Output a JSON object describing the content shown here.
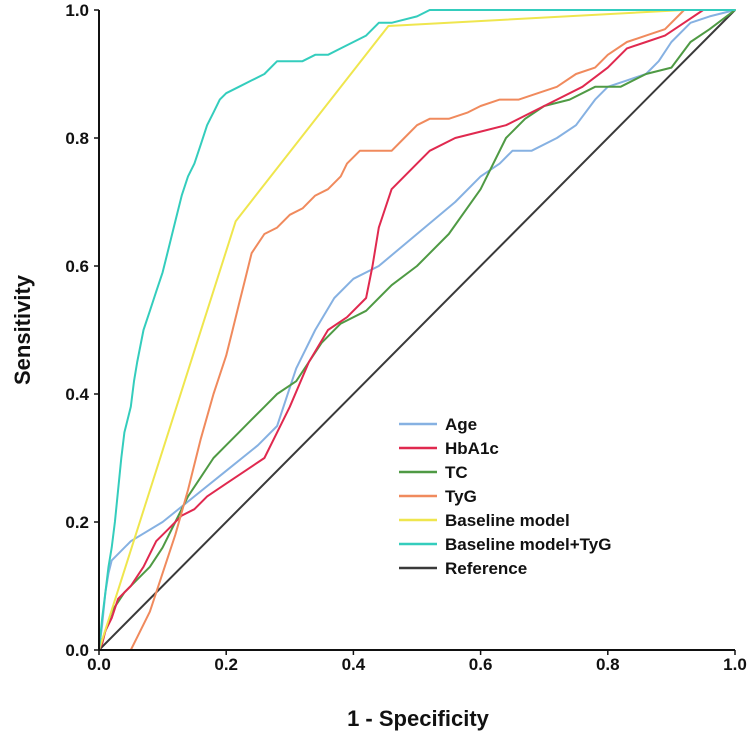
{
  "chart_data": {
    "type": "line",
    "title": "",
    "xlabel": "1 - Specificity",
    "ylabel": "Sensitivity",
    "xlim": [
      0.0,
      1.0
    ],
    "ylim": [
      0.0,
      1.0
    ],
    "x_ticks": [
      0.0,
      0.2,
      0.4,
      0.6,
      0.8,
      1.0
    ],
    "y_ticks": [
      0.0,
      0.2,
      0.4,
      0.6,
      0.8,
      1.0
    ],
    "x_tick_labels": [
      "0.0",
      "0.2",
      "0.4",
      "0.6",
      "0.8",
      "1.0"
    ],
    "y_tick_labels": [
      "0.0",
      "0.2",
      "0.4",
      "0.6",
      "0.8",
      "1.0"
    ],
    "grid": false,
    "legend_position": "bottom-right",
    "series": [
      {
        "name": "Age",
        "color": "#86b1e2",
        "points": [
          [
            0.0,
            0.0
          ],
          [
            0.005,
            0.04
          ],
          [
            0.01,
            0.09
          ],
          [
            0.015,
            0.12
          ],
          [
            0.02,
            0.14
          ],
          [
            0.05,
            0.17
          ],
          [
            0.1,
            0.2
          ],
          [
            0.15,
            0.24
          ],
          [
            0.2,
            0.28
          ],
          [
            0.25,
            0.32
          ],
          [
            0.28,
            0.35
          ],
          [
            0.31,
            0.44
          ],
          [
            0.34,
            0.5
          ],
          [
            0.37,
            0.55
          ],
          [
            0.4,
            0.58
          ],
          [
            0.44,
            0.6
          ],
          [
            0.5,
            0.65
          ],
          [
            0.56,
            0.7
          ],
          [
            0.6,
            0.74
          ],
          [
            0.63,
            0.76
          ],
          [
            0.65,
            0.78
          ],
          [
            0.68,
            0.78
          ],
          [
            0.72,
            0.8
          ],
          [
            0.75,
            0.82
          ],
          [
            0.78,
            0.86
          ],
          [
            0.8,
            0.88
          ],
          [
            0.83,
            0.89
          ],
          [
            0.86,
            0.9
          ],
          [
            0.88,
            0.92
          ],
          [
            0.9,
            0.95
          ],
          [
            0.93,
            0.98
          ],
          [
            0.96,
            0.99
          ],
          [
            1.0,
            1.0
          ]
        ]
      },
      {
        "name": "HbA1c",
        "color": "#e0294f",
        "points": [
          [
            0.0,
            0.0
          ],
          [
            0.005,
            0.01
          ],
          [
            0.01,
            0.03
          ],
          [
            0.02,
            0.05
          ],
          [
            0.03,
            0.08
          ],
          [
            0.05,
            0.1
          ],
          [
            0.07,
            0.13
          ],
          [
            0.09,
            0.17
          ],
          [
            0.11,
            0.19
          ],
          [
            0.13,
            0.21
          ],
          [
            0.15,
            0.22
          ],
          [
            0.17,
            0.24
          ],
          [
            0.2,
            0.26
          ],
          [
            0.23,
            0.28
          ],
          [
            0.26,
            0.3
          ],
          [
            0.28,
            0.34
          ],
          [
            0.3,
            0.38
          ],
          [
            0.33,
            0.45
          ],
          [
            0.36,
            0.5
          ],
          [
            0.39,
            0.52
          ],
          [
            0.42,
            0.55
          ],
          [
            0.43,
            0.6
          ],
          [
            0.44,
            0.66
          ],
          [
            0.46,
            0.72
          ],
          [
            0.5,
            0.76
          ],
          [
            0.52,
            0.78
          ],
          [
            0.56,
            0.8
          ],
          [
            0.6,
            0.81
          ],
          [
            0.64,
            0.82
          ],
          [
            0.68,
            0.84
          ],
          [
            0.72,
            0.86
          ],
          [
            0.76,
            0.88
          ],
          [
            0.8,
            0.91
          ],
          [
            0.83,
            0.94
          ],
          [
            0.86,
            0.95
          ],
          [
            0.89,
            0.96
          ],
          [
            0.92,
            0.98
          ],
          [
            0.95,
            1.0
          ],
          [
            1.0,
            1.0
          ]
        ]
      },
      {
        "name": "TC",
        "color": "#4f9a44",
        "points": [
          [
            0.0,
            0.0
          ],
          [
            0.01,
            0.03
          ],
          [
            0.02,
            0.06
          ],
          [
            0.04,
            0.09
          ],
          [
            0.06,
            0.11
          ],
          [
            0.08,
            0.13
          ],
          [
            0.1,
            0.16
          ],
          [
            0.12,
            0.2
          ],
          [
            0.14,
            0.24
          ],
          [
            0.16,
            0.27
          ],
          [
            0.18,
            0.3
          ],
          [
            0.2,
            0.32
          ],
          [
            0.22,
            0.34
          ],
          [
            0.24,
            0.36
          ],
          [
            0.26,
            0.38
          ],
          [
            0.28,
            0.4
          ],
          [
            0.31,
            0.42
          ],
          [
            0.33,
            0.45
          ],
          [
            0.35,
            0.48
          ],
          [
            0.38,
            0.51
          ],
          [
            0.42,
            0.53
          ],
          [
            0.46,
            0.57
          ],
          [
            0.5,
            0.6
          ],
          [
            0.55,
            0.65
          ],
          [
            0.6,
            0.72
          ],
          [
            0.64,
            0.8
          ],
          [
            0.67,
            0.83
          ],
          [
            0.7,
            0.85
          ],
          [
            0.74,
            0.86
          ],
          [
            0.78,
            0.88
          ],
          [
            0.82,
            0.88
          ],
          [
            0.86,
            0.9
          ],
          [
            0.9,
            0.91
          ],
          [
            0.93,
            0.95
          ],
          [
            0.96,
            0.97
          ],
          [
            1.0,
            1.0
          ]
        ]
      },
      {
        "name": "TyG",
        "color": "#f08a5d",
        "points": [
          [
            0.0,
            0.0
          ],
          [
            0.02,
            0.0
          ],
          [
            0.05,
            0.0
          ],
          [
            0.06,
            0.02
          ],
          [
            0.08,
            0.06
          ],
          [
            0.1,
            0.12
          ],
          [
            0.12,
            0.18
          ],
          [
            0.14,
            0.25
          ],
          [
            0.16,
            0.33
          ],
          [
            0.18,
            0.4
          ],
          [
            0.2,
            0.46
          ],
          [
            0.21,
            0.5
          ],
          [
            0.22,
            0.54
          ],
          [
            0.23,
            0.58
          ],
          [
            0.24,
            0.62
          ],
          [
            0.26,
            0.65
          ],
          [
            0.28,
            0.66
          ],
          [
            0.3,
            0.68
          ],
          [
            0.32,
            0.69
          ],
          [
            0.34,
            0.71
          ],
          [
            0.36,
            0.72
          ],
          [
            0.38,
            0.74
          ],
          [
            0.39,
            0.76
          ],
          [
            0.41,
            0.78
          ],
          [
            0.43,
            0.78
          ],
          [
            0.46,
            0.78
          ],
          [
            0.48,
            0.8
          ],
          [
            0.5,
            0.82
          ],
          [
            0.52,
            0.83
          ],
          [
            0.55,
            0.83
          ],
          [
            0.58,
            0.84
          ],
          [
            0.6,
            0.85
          ],
          [
            0.63,
            0.86
          ],
          [
            0.66,
            0.86
          ],
          [
            0.69,
            0.87
          ],
          [
            0.72,
            0.88
          ],
          [
            0.75,
            0.9
          ],
          [
            0.78,
            0.91
          ],
          [
            0.8,
            0.93
          ],
          [
            0.83,
            0.95
          ],
          [
            0.86,
            0.96
          ],
          [
            0.89,
            0.97
          ],
          [
            0.92,
            1.0
          ],
          [
            1.0,
            1.0
          ]
        ]
      },
      {
        "name": "Baseline model",
        "color": "#efe64e",
        "points": [
          [
            0.0,
            0.0
          ],
          [
            0.215,
            0.67
          ],
          [
            0.455,
            0.975
          ],
          [
            0.92,
            1.0
          ],
          [
            1.0,
            1.0
          ]
        ]
      },
      {
        "name": "Baseline model+TyG",
        "color": "#34cdbd",
        "points": [
          [
            0.0,
            0.0
          ],
          [
            0.005,
            0.05
          ],
          [
            0.01,
            0.09
          ],
          [
            0.015,
            0.13
          ],
          [
            0.02,
            0.16
          ],
          [
            0.025,
            0.2
          ],
          [
            0.03,
            0.25
          ],
          [
            0.035,
            0.3
          ],
          [
            0.04,
            0.34
          ],
          [
            0.05,
            0.38
          ],
          [
            0.055,
            0.42
          ],
          [
            0.06,
            0.45
          ],
          [
            0.07,
            0.5
          ],
          [
            0.08,
            0.53
          ],
          [
            0.09,
            0.56
          ],
          [
            0.1,
            0.59
          ],
          [
            0.11,
            0.63
          ],
          [
            0.12,
            0.67
          ],
          [
            0.13,
            0.71
          ],
          [
            0.14,
            0.74
          ],
          [
            0.15,
            0.76
          ],
          [
            0.16,
            0.79
          ],
          [
            0.17,
            0.82
          ],
          [
            0.18,
            0.84
          ],
          [
            0.19,
            0.86
          ],
          [
            0.2,
            0.87
          ],
          [
            0.22,
            0.88
          ],
          [
            0.24,
            0.89
          ],
          [
            0.26,
            0.9
          ],
          [
            0.28,
            0.92
          ],
          [
            0.3,
            0.92
          ],
          [
            0.32,
            0.92
          ],
          [
            0.34,
            0.93
          ],
          [
            0.36,
            0.93
          ],
          [
            0.38,
            0.94
          ],
          [
            0.4,
            0.95
          ],
          [
            0.42,
            0.96
          ],
          [
            0.44,
            0.98
          ],
          [
            0.46,
            0.98
          ],
          [
            0.5,
            0.99
          ],
          [
            0.52,
            1.0
          ],
          [
            1.0,
            1.0
          ]
        ]
      },
      {
        "name": "Reference",
        "color": "#3a3a3a",
        "points": [
          [
            0.0,
            0.0
          ],
          [
            1.0,
            1.0
          ]
        ]
      }
    ]
  }
}
